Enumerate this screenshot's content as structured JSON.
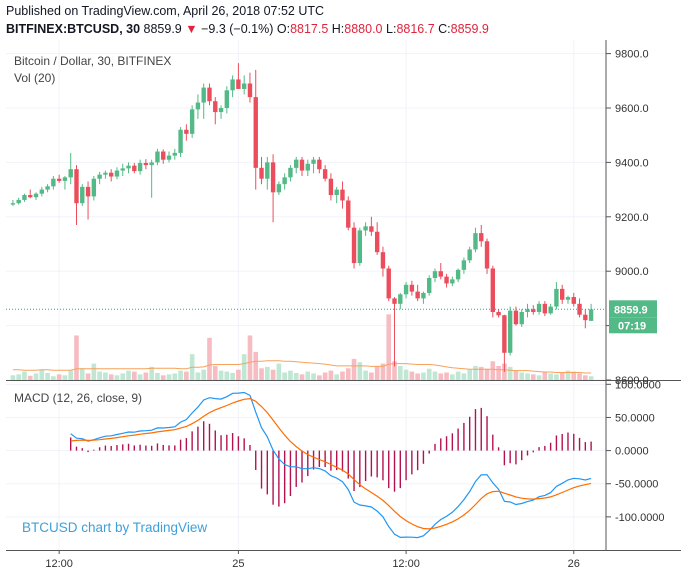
{
  "header": {
    "published": "Published on TradingView.com, April 26, 2018 07:52 UTC",
    "symbol": "BITFINEX:BTCUSD, 30",
    "last": "8859.9",
    "arrow": "▼",
    "change": "−9.3 (−0.1%)",
    "o_label": "O:",
    "o_value": "8817.5",
    "h_label": "H:",
    "h_value": "8880.0",
    "l_label": "L:",
    "l_value": "8816.7",
    "c_label": "C:",
    "c_value": "8859.9"
  },
  "legend": {
    "main": "Bitcoin / Dollar, 30, BITFINEX",
    "vol": "Vol (20)",
    "macd": "MACD (12, 26, close, 9)"
  },
  "watermark": "BTCUSD chart by TradingView",
  "colors": {
    "up": "#53b987",
    "down": "#eb4d5c",
    "vol_up": "#bfe7d3",
    "vol_down": "#f7bcc2",
    "vol_ma": "#f5a25b",
    "macd": "#2196f3",
    "signal": "#ff6d00",
    "hist": "#b4124f"
  },
  "chart_data": [
    {
      "type": "candlestick",
      "title": "Bitcoin / Dollar, 30, BITFINEX",
      "y_ticks": [
        "9800.0",
        "9600.0",
        "9400.0",
        "9200.0",
        "9000.0",
        "8800.0",
        "8600.0"
      ],
      "ylim": [
        8600,
        9850
      ],
      "x_ticks": [
        "12:00",
        "25",
        "12:00",
        "26"
      ],
      "last_price": "8859.9",
      "countdown": "07:19",
      "ohlc": [
        [
          9245,
          9262,
          9240,
          9250
        ],
        [
          9250,
          9270,
          9245,
          9262
        ],
        [
          9262,
          9285,
          9255,
          9280
        ],
        [
          9280,
          9300,
          9268,
          9272
        ],
        [
          9272,
          9290,
          9262,
          9285
        ],
        [
          9285,
          9310,
          9275,
          9300
        ],
        [
          9300,
          9320,
          9290,
          9312
        ],
        [
          9312,
          9350,
          9300,
          9340
        ],
        [
          9340,
          9355,
          9325,
          9332
        ],
        [
          9332,
          9350,
          9300,
          9345
        ],
        [
          9345,
          9435,
          9320,
          9375
        ],
        [
          9375,
          9390,
          9170,
          9250
        ],
        [
          9250,
          9320,
          9240,
          9310
        ],
        [
          9310,
          9330,
          9190,
          9275
        ],
        [
          9275,
          9350,
          9260,
          9340
        ],
        [
          9340,
          9365,
          9320,
          9355
        ],
        [
          9355,
          9370,
          9340,
          9362
        ],
        [
          9362,
          9375,
          9330,
          9348
        ],
        [
          9348,
          9382,
          9338,
          9370
        ],
        [
          9370,
          9395,
          9350,
          9378
        ],
        [
          9378,
          9400,
          9360,
          9388
        ],
        [
          9388,
          9398,
          9360,
          9368
        ],
        [
          9368,
          9410,
          9355,
          9398
        ],
        [
          9398,
          9412,
          9375,
          9390
        ],
        [
          9390,
          9410,
          9270,
          9400
        ],
        [
          9400,
          9450,
          9390,
          9440
        ],
        [
          9440,
          9448,
          9395,
          9410
        ],
        [
          9410,
          9440,
          9400,
          9425
        ],
        [
          9425,
          9450,
          9410,
          9435
        ],
        [
          9435,
          9530,
          9420,
          9520
        ],
        [
          9520,
          9540,
          9480,
          9505
        ],
        [
          9505,
          9610,
          9490,
          9595
        ],
        [
          9595,
          9650,
          9560,
          9620
        ],
        [
          9620,
          9690,
          9560,
          9675
        ],
        [
          9675,
          9690,
          9610,
          9625
        ],
        [
          9625,
          9640,
          9540,
          9585
        ],
        [
          9585,
          9610,
          9560,
          9600
        ],
        [
          9600,
          9680,
          9580,
          9665
        ],
        [
          9665,
          9720,
          9640,
          9705
        ],
        [
          9705,
          9765,
          9680,
          9670
        ],
        [
          9670,
          9720,
          9650,
          9690
        ],
        [
          9690,
          9730,
          9620,
          9640
        ],
        [
          9640,
          9740,
          9300,
          9380
        ],
        [
          9380,
          9420,
          9320,
          9340
        ],
        [
          9340,
          9420,
          9300,
          9400
        ],
        [
          9400,
          9430,
          9180,
          9290
        ],
        [
          9290,
          9330,
          9280,
          9320
        ],
        [
          9320,
          9360,
          9300,
          9345
        ],
        [
          9345,
          9390,
          9330,
          9380
        ],
        [
          9380,
          9420,
          9360,
          9410
        ],
        [
          9410,
          9420,
          9350,
          9370
        ],
        [
          9370,
          9410,
          9350,
          9395
        ],
        [
          9395,
          9420,
          9360,
          9410
        ],
        [
          9410,
          9420,
          9360,
          9375
        ],
        [
          9375,
          9390,
          9330,
          9340
        ],
        [
          9340,
          9360,
          9260,
          9280
        ],
        [
          9280,
          9310,
          9250,
          9300
        ],
        [
          9300,
          9330,
          9230,
          9260
        ],
        [
          9260,
          9275,
          9150,
          9160
        ],
        [
          9160,
          9180,
          9010,
          9030
        ],
        [
          9030,
          9160,
          9020,
          9150
        ],
        [
          9150,
          9180,
          9130,
          9165
        ],
        [
          9165,
          9200,
          9130,
          9145
        ],
        [
          9145,
          9180,
          9060,
          9070
        ],
        [
          9070,
          9090,
          8980,
          9010
        ],
        [
          9010,
          9020,
          8890,
          8900
        ],
        [
          8900,
          8905,
          8650,
          8880
        ],
        [
          8880,
          8920,
          8860,
          8915
        ],
        [
          8915,
          8960,
          8900,
          8950
        ],
        [
          8950,
          8965,
          8910,
          8925
        ],
        [
          8925,
          8950,
          8890,
          8900
        ],
        [
          8900,
          8925,
          8880,
          8920
        ],
        [
          8920,
          8985,
          8910,
          8975
        ],
        [
          8975,
          9010,
          8960,
          9000
        ],
        [
          9000,
          9030,
          8970,
          8980
        ],
        [
          8980,
          8990,
          8940,
          8955
        ],
        [
          8955,
          8980,
          8945,
          8970
        ],
        [
          8970,
          9010,
          8960,
          9005
        ],
        [
          9005,
          9050,
          8990,
          9040
        ],
        [
          9040,
          9090,
          9030,
          9080
        ],
        [
          9080,
          9160,
          9070,
          9140
        ],
        [
          9140,
          9170,
          9090,
          9110
        ],
        [
          9110,
          9120,
          8990,
          9010
        ],
        [
          9010,
          9020,
          8830,
          8850
        ],
        [
          8850,
          8860,
          8830,
          8838
        ],
        [
          8838,
          8840,
          8630,
          8700
        ],
        [
          8700,
          8870,
          8690,
          8855
        ],
        [
          8855,
          8870,
          8800,
          8805
        ],
        [
          8805,
          8860,
          8795,
          8850
        ],
        [
          8850,
          8880,
          8830,
          8860
        ],
        [
          8860,
          8875,
          8840,
          8850
        ],
        [
          8850,
          8890,
          8840,
          8880
        ],
        [
          8880,
          8890,
          8835,
          8845
        ],
        [
          8845,
          8880,
          8840,
          8870
        ],
        [
          8870,
          8960,
          8860,
          8935
        ],
        [
          8935,
          8950,
          8880,
          8895
        ],
        [
          8895,
          8910,
          8880,
          8905
        ],
        [
          8905,
          8920,
          8870,
          8880
        ],
        [
          8880,
          8900,
          8830,
          8840
        ],
        [
          8840,
          8860,
          8790,
          8820
        ],
        [
          8817.5,
          8880,
          8816.7,
          8859.9
        ]
      ]
    },
    {
      "type": "bar",
      "title": "Vol (20)",
      "values": [
        10,
        12,
        18,
        9,
        14,
        22,
        15,
        8,
        12,
        10,
        20,
        95,
        25,
        14,
        35,
        18,
        16,
        12,
        10,
        14,
        20,
        18,
        12,
        16,
        28,
        15,
        10,
        12,
        14,
        20,
        18,
        55,
        16,
        22,
        90,
        30,
        20,
        18,
        15,
        22,
        55,
        95,
        60,
        25,
        28,
        22,
        35,
        16,
        20,
        15,
        12,
        18,
        14,
        10,
        16,
        20,
        12,
        18,
        25,
        45,
        38,
        20,
        16,
        30,
        35,
        140,
        40,
        30,
        22,
        18,
        14,
        16,
        24,
        18,
        14,
        16,
        12,
        18,
        14,
        22,
        30,
        28,
        24,
        40,
        30,
        35,
        28,
        20,
        16,
        14,
        12,
        10,
        18,
        14,
        12,
        16,
        20,
        18,
        14,
        10,
        8
      ],
      "vol_ma": [
        22,
        22,
        21,
        21,
        21,
        22,
        22,
        21,
        21,
        21,
        21,
        24,
        24,
        24,
        24,
        24,
        24,
        24,
        24,
        24,
        24,
        24,
        24,
        24,
        25,
        25,
        25,
        25,
        25,
        24,
        24,
        27,
        27,
        28,
        32,
        33,
        33,
        33,
        33,
        33,
        35,
        38,
        40,
        40,
        41,
        41,
        41,
        40,
        40,
        39,
        38,
        37,
        36,
        35,
        34,
        32,
        30,
        30,
        30,
        30,
        30,
        30,
        29,
        29,
        29,
        34,
        35,
        35,
        35,
        34,
        33,
        33,
        33,
        32,
        30,
        28,
        26,
        25,
        24,
        23,
        23,
        23,
        23,
        23,
        22,
        22,
        21,
        20,
        20,
        20,
        19,
        18,
        17,
        17,
        16,
        16,
        16,
        16,
        16,
        15,
        15
      ]
    },
    {
      "type": "line",
      "title": "MACD (12, 26, close, 9)",
      "y_ticks": [
        "100.0000",
        "50.0000",
        "0.0000",
        "-50.0000",
        "-100.0000"
      ],
      "ylim": [
        -150,
        105
      ]
    }
  ]
}
